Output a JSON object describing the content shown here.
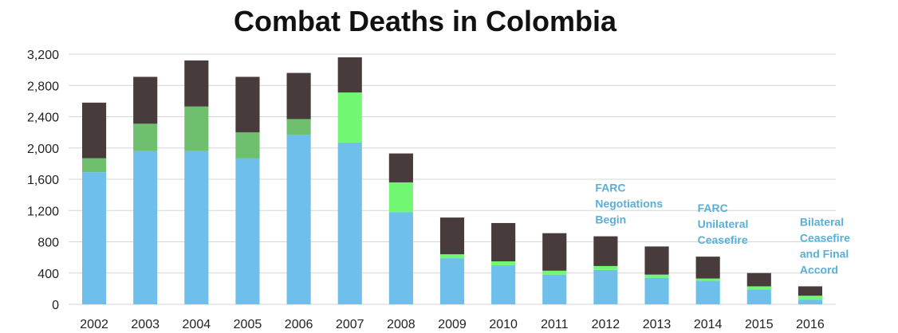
{
  "chart_data": {
    "type": "bar",
    "stacked": true,
    "title": "Combat Deaths in Colombia",
    "xlabel": "",
    "ylabel": "",
    "ylim": [
      0,
      3200
    ],
    "yticks": [
      0,
      400,
      800,
      1200,
      1600,
      2000,
      2400,
      2800,
      3200
    ],
    "ytick_labels": [
      "0",
      "400",
      "800",
      "1,200",
      "1,600",
      "2,000",
      "2,400",
      "2,800",
      "3,200"
    ],
    "grid": true,
    "legend": "none",
    "categories": [
      "2002",
      "2003",
      "2004",
      "2005",
      "2006",
      "2007",
      "2008",
      "2009",
      "2010",
      "2011",
      "2012",
      "2013",
      "2014",
      "2015",
      "2016"
    ],
    "series": [
      {
        "color": "#6ec0ea",
        "values": [
          1690,
          1960,
          1960,
          1870,
          2170,
          2070,
          1180,
          590,
          500,
          380,
          440,
          340,
          300,
          190,
          60
        ]
      },
      {
        "color_by_category": [
          "#6ebf6e",
          "#6ebf6e",
          "#6ebf6e",
          "#6ebf6e",
          "#6ebf6e",
          "#72f772",
          "#72f772",
          "#72f772",
          "#72f772",
          "#72f772",
          "#72f772",
          "#72f772",
          "#72f772",
          "#72f772",
          "#72f772"
        ],
        "values": [
          180,
          350,
          570,
          330,
          200,
          640,
          380,
          50,
          50,
          50,
          50,
          40,
          30,
          40,
          50
        ]
      },
      {
        "color": "#473b3b",
        "values": [
          710,
          600,
          590,
          710,
          590,
          450,
          370,
          470,
          490,
          480,
          380,
          360,
          280,
          170,
          120
        ]
      }
    ],
    "annotations": [
      {
        "lines": [
          "FARC",
          "Negotiations",
          "Begin"
        ],
        "category": "2012"
      },
      {
        "lines": [
          "FARC",
          "Unilateral",
          "Ceasefire"
        ],
        "category": "2014"
      },
      {
        "lines": [
          "Bilateral",
          "Ceasefire",
          "and Final",
          "Accord"
        ],
        "category": "2016"
      }
    ],
    "annotation_color": "#5aaed8"
  }
}
